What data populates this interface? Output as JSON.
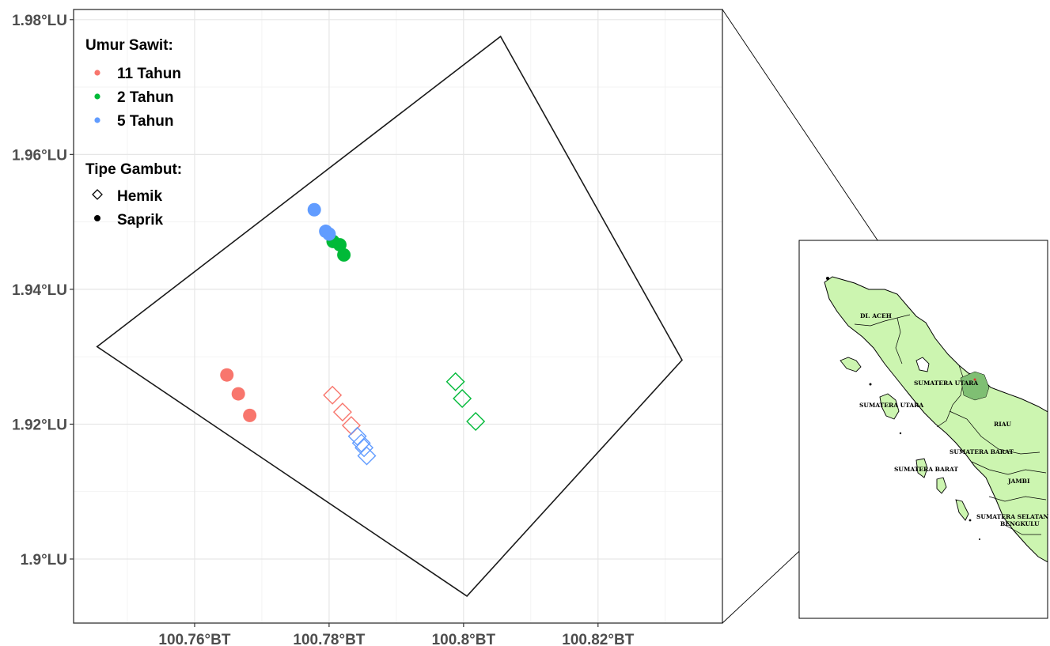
{
  "main_map": {
    "x_ticks": [
      {
        "value": 100.76,
        "label": "100.76°BT"
      },
      {
        "value": 100.78,
        "label": "100.78°BT"
      },
      {
        "value": 100.8,
        "label": "100.8°BT"
      },
      {
        "value": 100.82,
        "label": "100.82°BT"
      }
    ],
    "y_ticks": [
      {
        "value": 1.9,
        "label": "1.9°LU"
      },
      {
        "value": 1.92,
        "label": "1.92°LU"
      },
      {
        "value": 1.94,
        "label": "1.94°LU"
      },
      {
        "value": 1.96,
        "label": "1.96°LU"
      },
      {
        "value": 1.98,
        "label": "1.98°LU"
      }
    ],
    "xlim": [
      100.742,
      100.8385
    ],
    "ylim": [
      1.8905,
      1.9815
    ],
    "grid": true,
    "boundary_polygon": [
      [
        100.7455,
        1.9315
      ],
      [
        100.8055,
        1.9775
      ],
      [
        100.8325,
        1.9295
      ],
      [
        100.8005,
        1.8945
      ]
    ],
    "legend": {
      "color_title": "Umur Sawit:",
      "color_items": [
        {
          "label": "11 Tahun",
          "color": "#F8766D"
        },
        {
          "label": "2 Tahun",
          "color": "#00BA38"
        },
        {
          "label": "5 Tahun",
          "color": "#619CFF"
        }
      ],
      "shape_title": "Tipe Gambut:",
      "shape_items": [
        {
          "label": "Hemik",
          "shape": "diamond-open"
        },
        {
          "label": "Saprik",
          "shape": "circle-filled"
        }
      ]
    }
  },
  "chart_data": {
    "type": "scatter",
    "title": "",
    "xlabel": "",
    "ylabel": "",
    "xlim": [
      100.742,
      100.8385
    ],
    "ylim": [
      1.8905,
      1.9815
    ],
    "series": [
      {
        "name": "11 Tahun",
        "tipe": "Saprik",
        "color": "#F8766D",
        "points": [
          [
            100.7648,
            1.9273
          ],
          [
            100.7665,
            1.9245
          ],
          [
            100.7682,
            1.9213
          ]
        ]
      },
      {
        "name": "11 Tahun",
        "tipe": "Hemik",
        "color": "#F8766D",
        "points": [
          [
            100.7805,
            1.9243
          ],
          [
            100.782,
            1.9218
          ],
          [
            100.7833,
            1.9198
          ]
        ]
      },
      {
        "name": "2 Tahun",
        "tipe": "Saprik",
        "color": "#00BA38",
        "points": [
          [
            100.7806,
            1.9471
          ],
          [
            100.7816,
            1.9466
          ],
          [
            100.7822,
            1.9451
          ]
        ]
      },
      {
        "name": "2 Tahun",
        "tipe": "Hemik",
        "color": "#00BA38",
        "points": [
          [
            100.7988,
            1.9263
          ],
          [
            100.7998,
            1.9238
          ],
          [
            100.8018,
            1.9204
          ]
        ]
      },
      {
        "name": "5 Tahun",
        "tipe": "Saprik",
        "color": "#619CFF",
        "points": [
          [
            100.7778,
            1.9518
          ],
          [
            100.7795,
            1.9486
          ],
          [
            100.78,
            1.9482
          ]
        ]
      },
      {
        "name": "5 Tahun",
        "tipe": "Hemik",
        "color": "#619CFF",
        "points": [
          [
            100.7842,
            1.9182
          ],
          [
            100.7848,
            1.9172
          ],
          [
            100.7852,
            1.9165
          ],
          [
            100.7856,
            1.9153
          ]
        ]
      }
    ]
  },
  "inset_map": {
    "region_labels": [
      "DI. ACEH",
      "SUMATERA UTARA",
      "SUMATERA UTARA",
      "RIAU",
      "SUMATERA BARAT",
      "SUMATERA BARAT",
      "JAMBI",
      "SUMATERA SELATAN",
      "BENGKULU"
    ],
    "land_color": "#ccf5b0",
    "highlight_color": "#7fbf73"
  }
}
